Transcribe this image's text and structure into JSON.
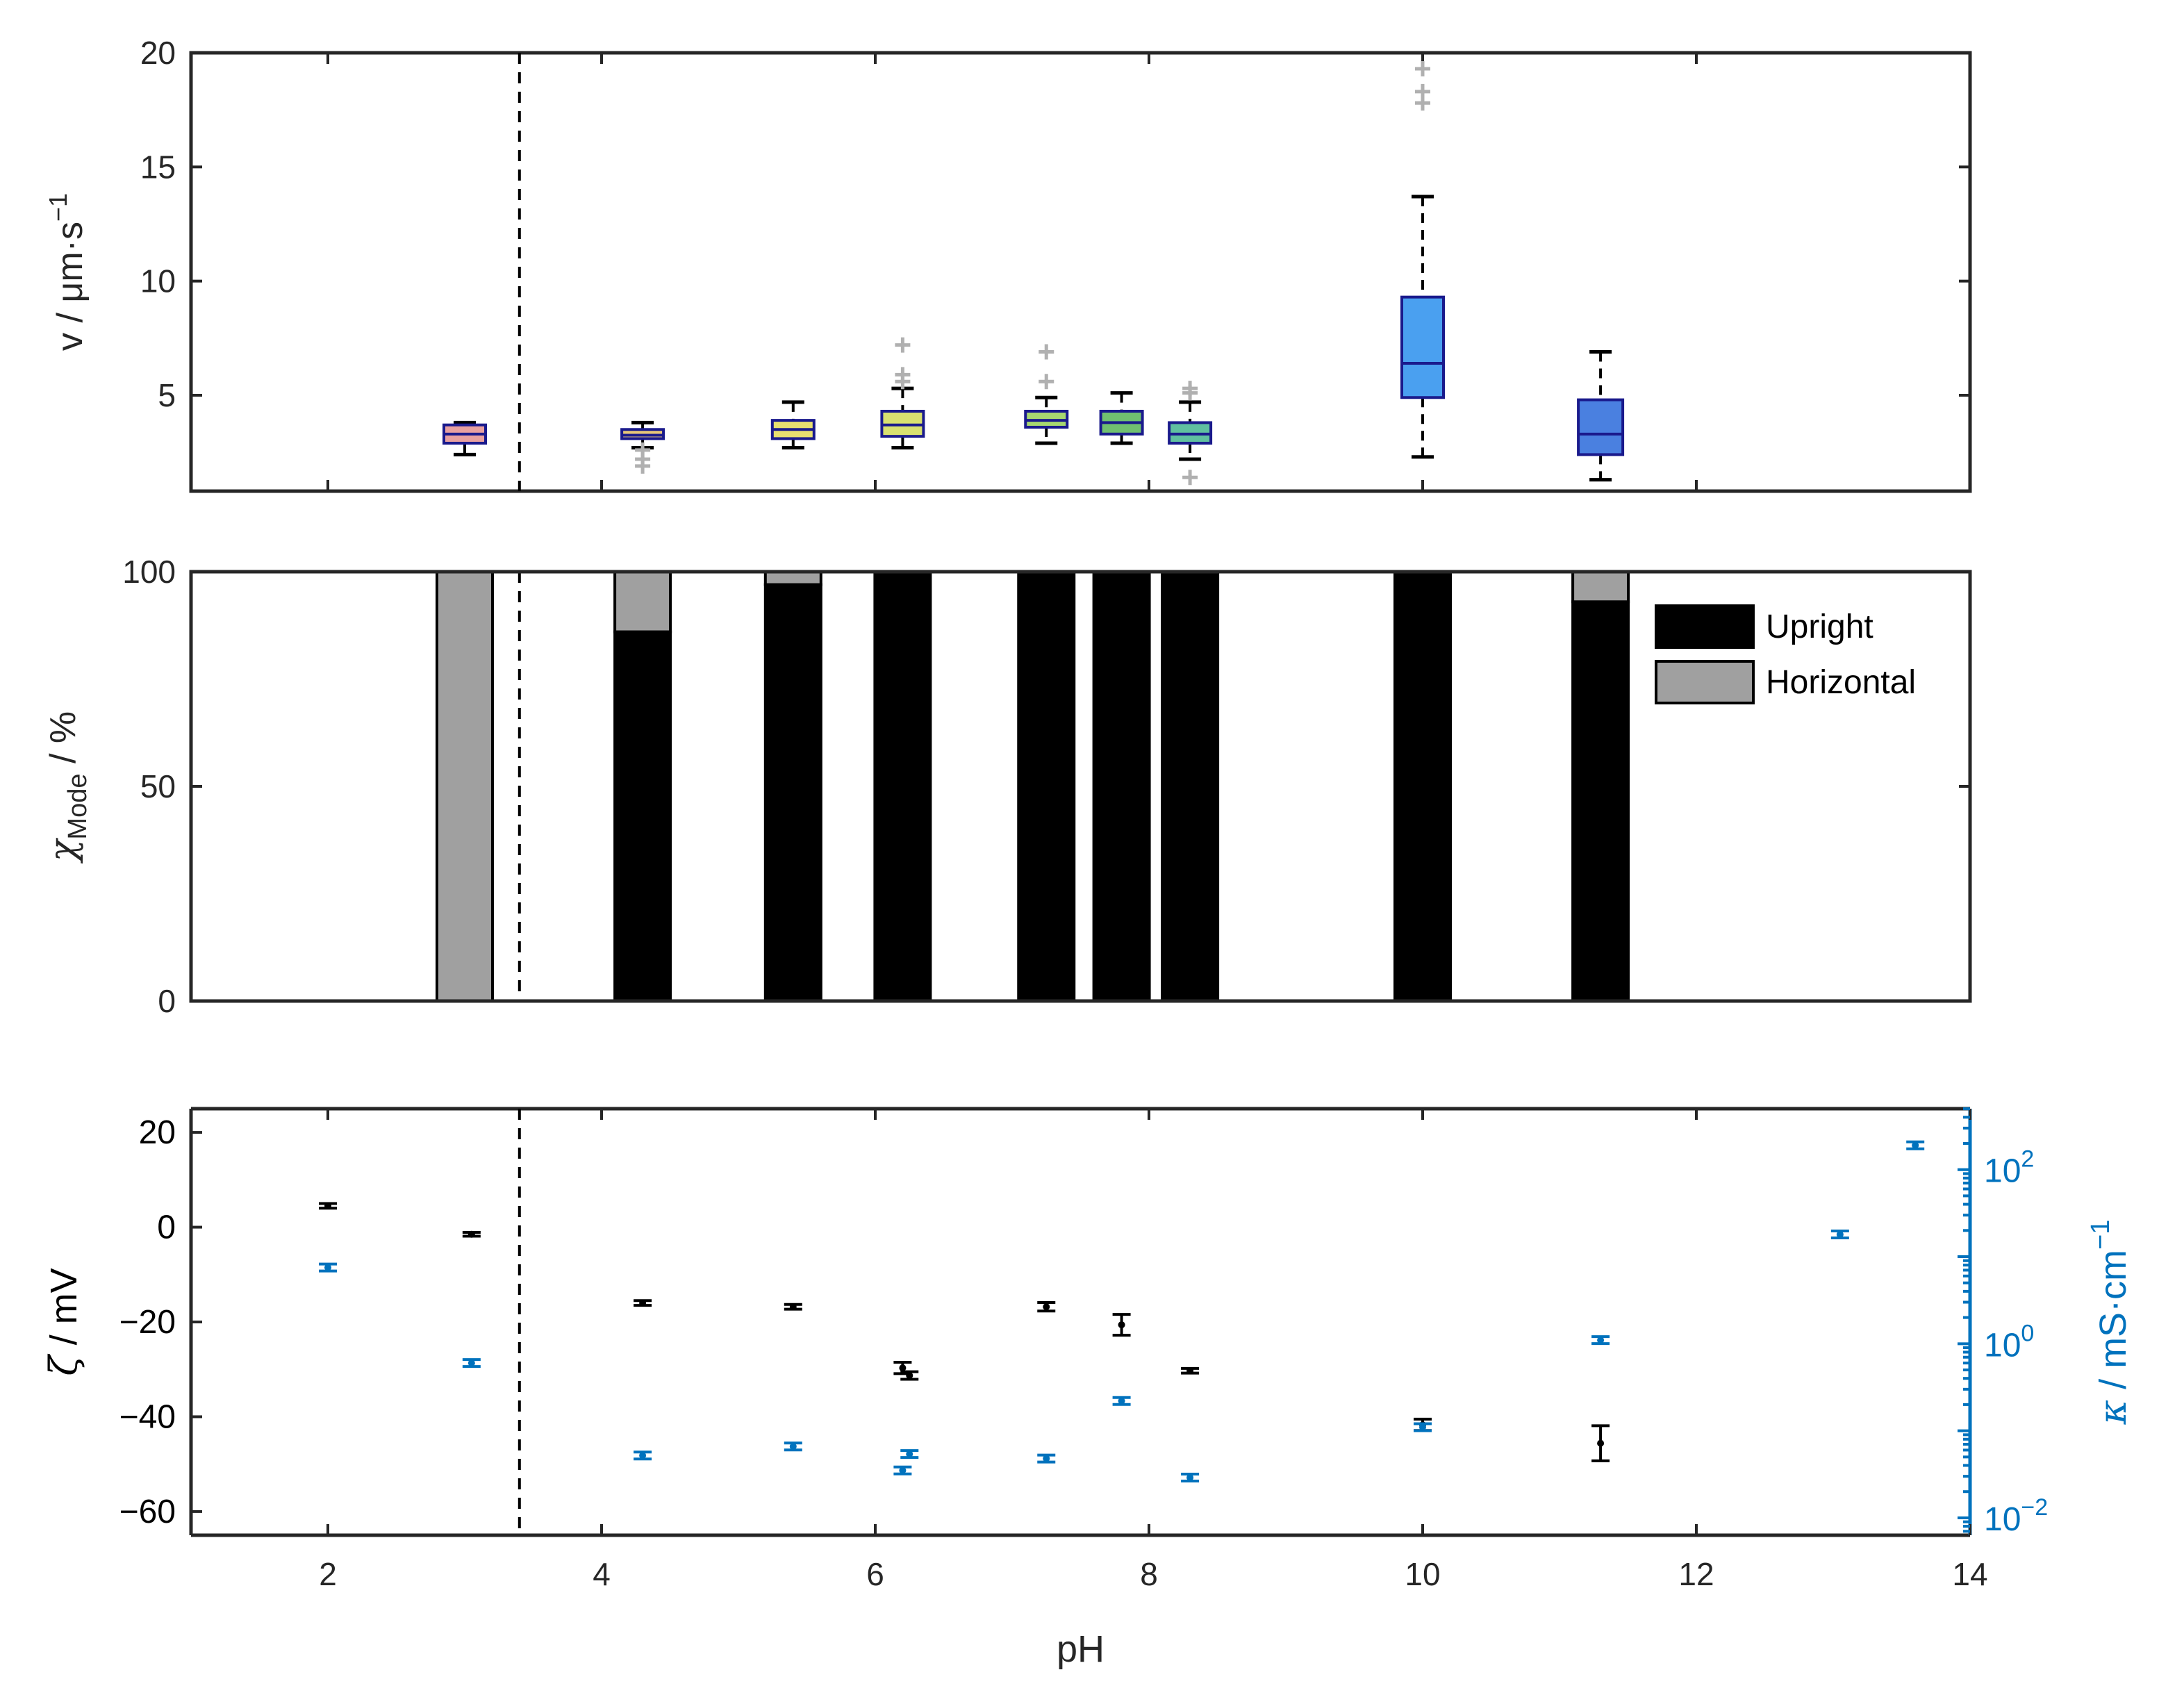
{
  "chart_data": [
    {
      "id": "speed",
      "type": "box",
      "ylabel": "v / μm·s",
      "ylabel_sup": "−1",
      "xlim": [
        1,
        14
      ],
      "ylim": [
        0.8,
        20
      ],
      "yticks": [
        5,
        10,
        15,
        20
      ],
      "xticks": [
        2,
        4,
        6,
        8,
        10,
        12,
        14
      ],
      "threshold_ph": 3.4,
      "boxes": [
        {
          "ph": 3.0,
          "q1": 2.9,
          "median": 3.3,
          "q3": 3.7,
          "wlo": 2.4,
          "whi": 3.8,
          "outliers": [],
          "color": "#e8a0a0"
        },
        {
          "ph": 4.3,
          "q1": 3.1,
          "median": 3.25,
          "q3": 3.5,
          "wlo": 2.7,
          "whi": 3.8,
          "outliers": [
            2.6,
            2.2,
            1.9
          ],
          "color": "#e8c878"
        },
        {
          "ph": 5.4,
          "q1": 3.1,
          "median": 3.5,
          "q3": 3.9,
          "wlo": 2.7,
          "whi": 4.7,
          "outliers": [],
          "color": "#e8e070"
        },
        {
          "ph": 6.2,
          "q1": 3.2,
          "median": 3.7,
          "q3": 4.3,
          "wlo": 2.7,
          "whi": 5.3,
          "outliers": [
            5.6,
            5.9,
            7.2
          ],
          "color": "#d8e070"
        },
        {
          "ph": 7.25,
          "q1": 3.6,
          "median": 3.9,
          "q3": 4.3,
          "wlo": 2.9,
          "whi": 4.9,
          "outliers": [
            5.6,
            6.9
          ],
          "color": "#a8d870"
        },
        {
          "ph": 7.8,
          "q1": 3.3,
          "median": 3.8,
          "q3": 4.3,
          "wlo": 2.9,
          "whi": 5.1,
          "outliers": [],
          "color": "#70c070"
        },
        {
          "ph": 8.3,
          "q1": 2.9,
          "median": 3.3,
          "q3": 3.8,
          "wlo": 2.2,
          "whi": 4.7,
          "outliers": [
            5.1,
            5.3,
            1.4
          ],
          "color": "#60c0a0"
        },
        {
          "ph": 10.0,
          "q1": 4.9,
          "median": 6.4,
          "q3": 9.3,
          "wlo": 2.3,
          "whi": 13.7,
          "outliers": [
            17.8,
            18.3,
            19.3
          ],
          "color": "#4aa0f0"
        },
        {
          "ph": 11.3,
          "q1": 2.4,
          "median": 3.3,
          "q3": 4.8,
          "wlo": 1.3,
          "whi": 6.9,
          "outliers": [],
          "color": "#4a80e0"
        }
      ]
    },
    {
      "id": "mode",
      "type": "bar",
      "ylabel_main": "χ",
      "ylabel_sub": "Mode",
      "ylabel_unit": " / %",
      "xlim": [
        1,
        14
      ],
      "ylim": [
        0,
        100
      ],
      "yticks": [
        0,
        50,
        100
      ],
      "threshold_ph": 3.4,
      "legend": {
        "position": "top-right",
        "entries": [
          {
            "label": "Upright",
            "color": "#000000"
          },
          {
            "label": "Horizontal",
            "color": "#a0a0a0"
          }
        ]
      },
      "series": [
        {
          "name": "Upright",
          "values": [
            0,
            86,
            97,
            100,
            100,
            100,
            100,
            100,
            93
          ]
        },
        {
          "name": "Horizontal",
          "values": [
            100,
            14,
            3,
            0,
            0,
            0,
            0,
            0,
            7
          ]
        }
      ],
      "categories": [
        3.0,
        4.3,
        5.4,
        6.2,
        7.25,
        7.8,
        8.3,
        10.0,
        11.3
      ]
    },
    {
      "id": "zeta",
      "type": "scatter",
      "xlabel": "pH",
      "ylabel_left": " / mV",
      "ylabel_left_sym": "ζ",
      "ylabel_right": " / mS·cm",
      "ylabel_right_sym": "κ",
      "ylabel_right_sup": "−1",
      "xlim": [
        1,
        14
      ],
      "ylim": [
        -65,
        25
      ],
      "yticks": [
        -60,
        -40,
        -20,
        0,
        20
      ],
      "xticks": [
        2,
        4,
        6,
        8,
        10,
        12,
        14
      ],
      "right_ylim_log10": [
        -2.2,
        2.7
      ],
      "right_ticks": [
        {
          "exp": -2,
          "label": "10",
          "sup": "−2"
        },
        {
          "exp": 0,
          "label": "10",
          "sup": "0"
        },
        {
          "exp": 2,
          "label": "10",
          "sup": "2"
        }
      ],
      "threshold_ph": 3.4,
      "series": [
        {
          "name": "zeta",
          "color": "#000000",
          "points": [
            {
              "x": 2.0,
              "y": 4.5,
              "err": 0.5
            },
            {
              "x": 3.05,
              "y": -1.5,
              "err": 0.4
            },
            {
              "x": 4.3,
              "y": -16.0,
              "err": 0.5
            },
            {
              "x": 5.4,
              "y": -16.8,
              "err": 0.5
            },
            {
              "x": 6.2,
              "y": -29.7,
              "err": 1.2
            },
            {
              "x": 6.25,
              "y": -31.3,
              "err": 0.8
            },
            {
              "x": 7.25,
              "y": -16.8,
              "err": 0.9
            },
            {
              "x": 7.8,
              "y": -20.6,
              "err": 2.2
            },
            {
              "x": 8.3,
              "y": -30.3,
              "err": 0.5
            },
            {
              "x": 10.0,
              "y": -41.7,
              "err": 1.2
            },
            {
              "x": 11.3,
              "y": -45.6,
              "err": 3.7
            }
          ]
        },
        {
          "name": "kappa",
          "color": "#0072bd",
          "points": [
            {
              "x": 2.0,
              "y": 7.5
            },
            {
              "x": 3.05,
              "y": 0.6
            },
            {
              "x": 4.3,
              "y": 0.052
            },
            {
              "x": 5.4,
              "y": 0.066
            },
            {
              "x": 6.2,
              "y": 0.035
            },
            {
              "x": 6.25,
              "y": 0.054
            },
            {
              "x": 7.25,
              "y": 0.048
            },
            {
              "x": 7.8,
              "y": 0.22
            },
            {
              "x": 8.3,
              "y": 0.029
            },
            {
              "x": 10.0,
              "y": 0.11
            },
            {
              "x": 11.3,
              "y": 1.1
            },
            {
              "x": 13.05,
              "y": 18
            },
            {
              "x": 13.6,
              "y": 190
            }
          ]
        }
      ]
    }
  ]
}
